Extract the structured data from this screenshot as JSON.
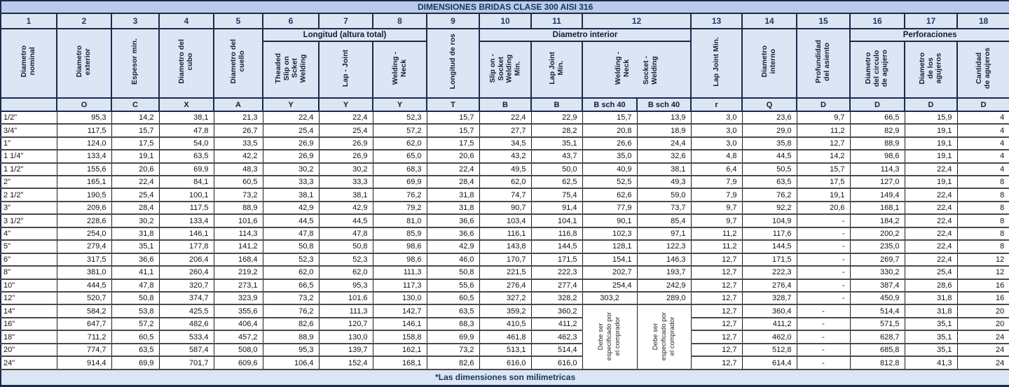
{
  "title": "DIMENSIONES BRIDAS CLASE 300 AISI 316",
  "footnote": "*Las dimensiones son milimetricas",
  "colors": {
    "title_bg": "#b9cbea",
    "header_bg": "#dbe5f4",
    "header_text": "#17365d",
    "data_bg": "#ffffff",
    "data_text": "#111111",
    "border_dark": "#1b2a4a"
  },
  "header": {
    "column_numbers": [
      "1",
      "2",
      "3",
      "4",
      "5",
      "6",
      "7",
      "8",
      "9",
      "10",
      "11",
      "12",
      "13",
      "14",
      "15",
      "16",
      "17",
      "18"
    ],
    "groups": {
      "longitud": "Longitud (altura total)",
      "diametro_interior": "Diametro interior",
      "perforaciones": "Perforaciones"
    },
    "rotated": {
      "c1": "Diametro\nnominal",
      "c2": "Diametro\nexterior",
      "c3": "Espesor min.",
      "c4": "Diametro del\ncubo",
      "c5": "Diametro del\ncuello",
      "c6": "Theaded\nSlip on\nScket\nWelding",
      "c7": "Lap - Joint",
      "c8": "Welding -\nNeck",
      "c9": "Longitud de ros",
      "c10": "Slip on -\nSocket\nWelding\nMin.",
      "c11": "Lap Joint\nMin.",
      "c12_welding_neck": "Welding -\nNeck",
      "c12_socket_welding": "Socket -\nWelding",
      "c13": "Lap Joint Min.",
      "c14": "Diametro\ninterno",
      "c15": "Profundidad\ndel asiento",
      "c16": "Diametro\ndel circulo\nde agujero",
      "c17": "Diametro\nde los\nagujeros",
      "c18": "Cantidad\nde agujeros"
    },
    "letters": [
      "",
      "O",
      "C",
      "X",
      "A",
      "Y",
      "Y",
      "Y",
      "T",
      "B",
      "B",
      "B sch 40",
      "B sch 40",
      "r",
      "Q",
      "D",
      "D",
      "D",
      "D"
    ],
    "merged_note": "Debe ser\nespecificado por\nel comprador"
  },
  "rows": [
    {
      "size": "1/2\"",
      "v": [
        "95,3",
        "14,2",
        "38,1",
        "21,3",
        "22,4",
        "22,4",
        "52,3",
        "15,7",
        "22,4",
        "22,9",
        "15,7",
        "13,9",
        "3,0",
        "23,6",
        "9,7",
        "66,5",
        "15,9",
        "4"
      ]
    },
    {
      "size": "3/4\"",
      "v": [
        "117,5",
        "15,7",
        "47,8",
        "26,7",
        "25,4",
        "25,4",
        "57,2",
        "15,7",
        "27,7",
        "28,2",
        "20,8",
        "18,9",
        "3,0",
        "29,0",
        "11,2",
        "82,9",
        "19,1",
        "4"
      ]
    },
    {
      "size": "1\"",
      "v": [
        "124,0",
        "17,5",
        "54,0",
        "33,5",
        "26,9",
        "26,9",
        "62,0",
        "17,5",
        "34,5",
        "35,1",
        "26,6",
        "24,4",
        "3,0",
        "35,8",
        "12,7",
        "88,9",
        "19,1",
        "4"
      ]
    },
    {
      "size": "1 1/4\"",
      "v": [
        "133,4",
        "19,1",
        "63,5",
        "42,2",
        "26,9",
        "26,9",
        "65,0",
        "20,6",
        "43,2",
        "43,7",
        "35,0",
        "32,6",
        "4,8",
        "44,5",
        "14,2",
        "98,6",
        "19,1",
        "4"
      ]
    },
    {
      "size": "1 1/2\"",
      "v": [
        "155,6",
        "20,6",
        "69,9",
        "48,3",
        "30,2",
        "30,2",
        "68,3",
        "22,4",
        "49,5",
        "50,0",
        "40,9",
        "38,1",
        "6,4",
        "50,5",
        "15,7",
        "114,3",
        "22,4",
        "4"
      ]
    },
    {
      "size": "2\"",
      "v": [
        "165,1",
        "22,4",
        "84,1",
        "60,5",
        "33,3",
        "33,3",
        "69,9",
        "28,4",
        "62,0",
        "62,5",
        "52,5",
        "49,3",
        "7,9",
        "63,5",
        "17,5",
        "127,0",
        "19,1",
        "8"
      ]
    },
    {
      "size": "2 1/2\"",
      "v": [
        "190,5",
        "25,4",
        "100,1",
        "73,2",
        "38,1",
        "38,1",
        "76,2",
        "31,8",
        "74,7",
        "75,4",
        "62,6",
        "59,0",
        "7,9",
        "76,2",
        "19,1",
        "149,4",
        "22,4",
        "8"
      ]
    },
    {
      "size": "3\"",
      "v": [
        "209,6",
        "28,4",
        "117,5",
        "88,9",
        "42,9",
        "42,9",
        "79,2",
        "31,8",
        "90,7",
        "91,4",
        "77,9",
        "73,7",
        "9,7",
        "92,2",
        "20,6",
        "168,1",
        "22,4",
        "8"
      ]
    },
    {
      "size": "3 1/2\"",
      "v": [
        "228,6",
        "30,2",
        "133,4",
        "101,6",
        "44,5",
        "44,5",
        "81,0",
        "36,6",
        "103,4",
        "104,1",
        "90,1",
        "85,4",
        "9,7",
        "104,9",
        "-",
        "184,2",
        "22,4",
        "8"
      ]
    },
    {
      "size": "4\"",
      "v": [
        "254,0",
        "31,8",
        "146,1",
        "114,3",
        "47,8",
        "47,8",
        "85,9",
        "36,6",
        "116,1",
        "116,8",
        "102,3",
        "97,1",
        "11,2",
        "117,6",
        "-",
        "200,2",
        "22,4",
        "8"
      ]
    },
    {
      "size": "5\"",
      "v": [
        "279,4",
        "35,1",
        "177,8",
        "141,2",
        "50,8",
        "50,8",
        "98,6",
        "42,9",
        "143,8",
        "144,5",
        "128,1",
        "122,3",
        "11,2",
        "144,5",
        "-",
        "235,0",
        "22,4",
        "8"
      ]
    },
    {
      "size": "6\"",
      "v": [
        "317,5",
        "36,6",
        "206,4",
        "168,4",
        "52,3",
        "52,3",
        "98,6",
        "46,0",
        "170,7",
        "171,5",
        "154,1",
        "146,3",
        "12,7",
        "171,5",
        "-",
        "269,7",
        "22,4",
        "12"
      ]
    },
    {
      "size": "8\"",
      "v": [
        "381,0",
        "41,1",
        "260,4",
        "219,2",
        "62,0",
        "62,0",
        "111,3",
        "50,8",
        "221,5",
        "222,3",
        "202,7",
        "193,7",
        "12,7",
        "222,3",
        "-",
        "330,2",
        "25,4",
        "12"
      ]
    },
    {
      "size": "10\"",
      "v": [
        "444,5",
        "47,8",
        "320,7",
        "273,1",
        "66,5",
        "95,3",
        "117,3",
        "55,6",
        "276,4",
        "277,4",
        "254,4",
        "242,9",
        "12,7",
        "276,4",
        "-",
        "387,4",
        "28,6",
        "16"
      ]
    },
    {
      "size": "12\"",
      "center_b12a": true,
      "v": [
        "520,7",
        "50,8",
        "374,7",
        "323,9",
        "73,2",
        "101,6",
        "130,0",
        "60,5",
        "327,2",
        "328,2",
        "303,2",
        "289,0",
        "12,7",
        "328,7",
        "-",
        "450,9",
        "31,8",
        "16"
      ]
    },
    {
      "size": "14\"",
      "merged_start": true,
      "v": [
        "584,2",
        "53,8",
        "425,5",
        "355,6",
        "76,2",
        "111,3",
        "142,7",
        "63,5",
        "359,2",
        "360,2",
        "12,7",
        "360,4",
        "-",
        "514,4",
        "31,8",
        "20"
      ]
    },
    {
      "size": "16\"",
      "merged": true,
      "v": [
        "647,7",
        "57,2",
        "482,6",
        "406,4",
        "82,6",
        "120,7",
        "146,1",
        "68,3",
        "410,5",
        "411,2",
        "12,7",
        "411,2",
        "-",
        "571,5",
        "35,1",
        "20"
      ]
    },
    {
      "size": "18\"",
      "merged": true,
      "v": [
        "711,2",
        "60,5",
        "533,4",
        "457,2",
        "88,9",
        "130,0",
        "158,8",
        "69,9",
        "461,8",
        "462,3",
        "12,7",
        "462,0",
        "-",
        "628,7",
        "35,1",
        "24"
      ]
    },
    {
      "size": "20\"",
      "merged": true,
      "v": [
        "774,7",
        "63,5",
        "587,4",
        "508,0",
        "95,3",
        "139,7",
        "162,1",
        "73,2",
        "513,1",
        "514,4",
        "12,7",
        "512,8",
        "-",
        "685,8",
        "35,1",
        "24"
      ]
    },
    {
      "size": "24\"",
      "merged": true,
      "v": [
        "914,4",
        "69,9",
        "701,7",
        "609,6",
        "106,4",
        "152,4",
        "168,1",
        "82,6",
        "616,0",
        "616,0",
        "12,7",
        "614,4",
        "-",
        "812,8",
        "41,3",
        "24"
      ]
    }
  ]
}
